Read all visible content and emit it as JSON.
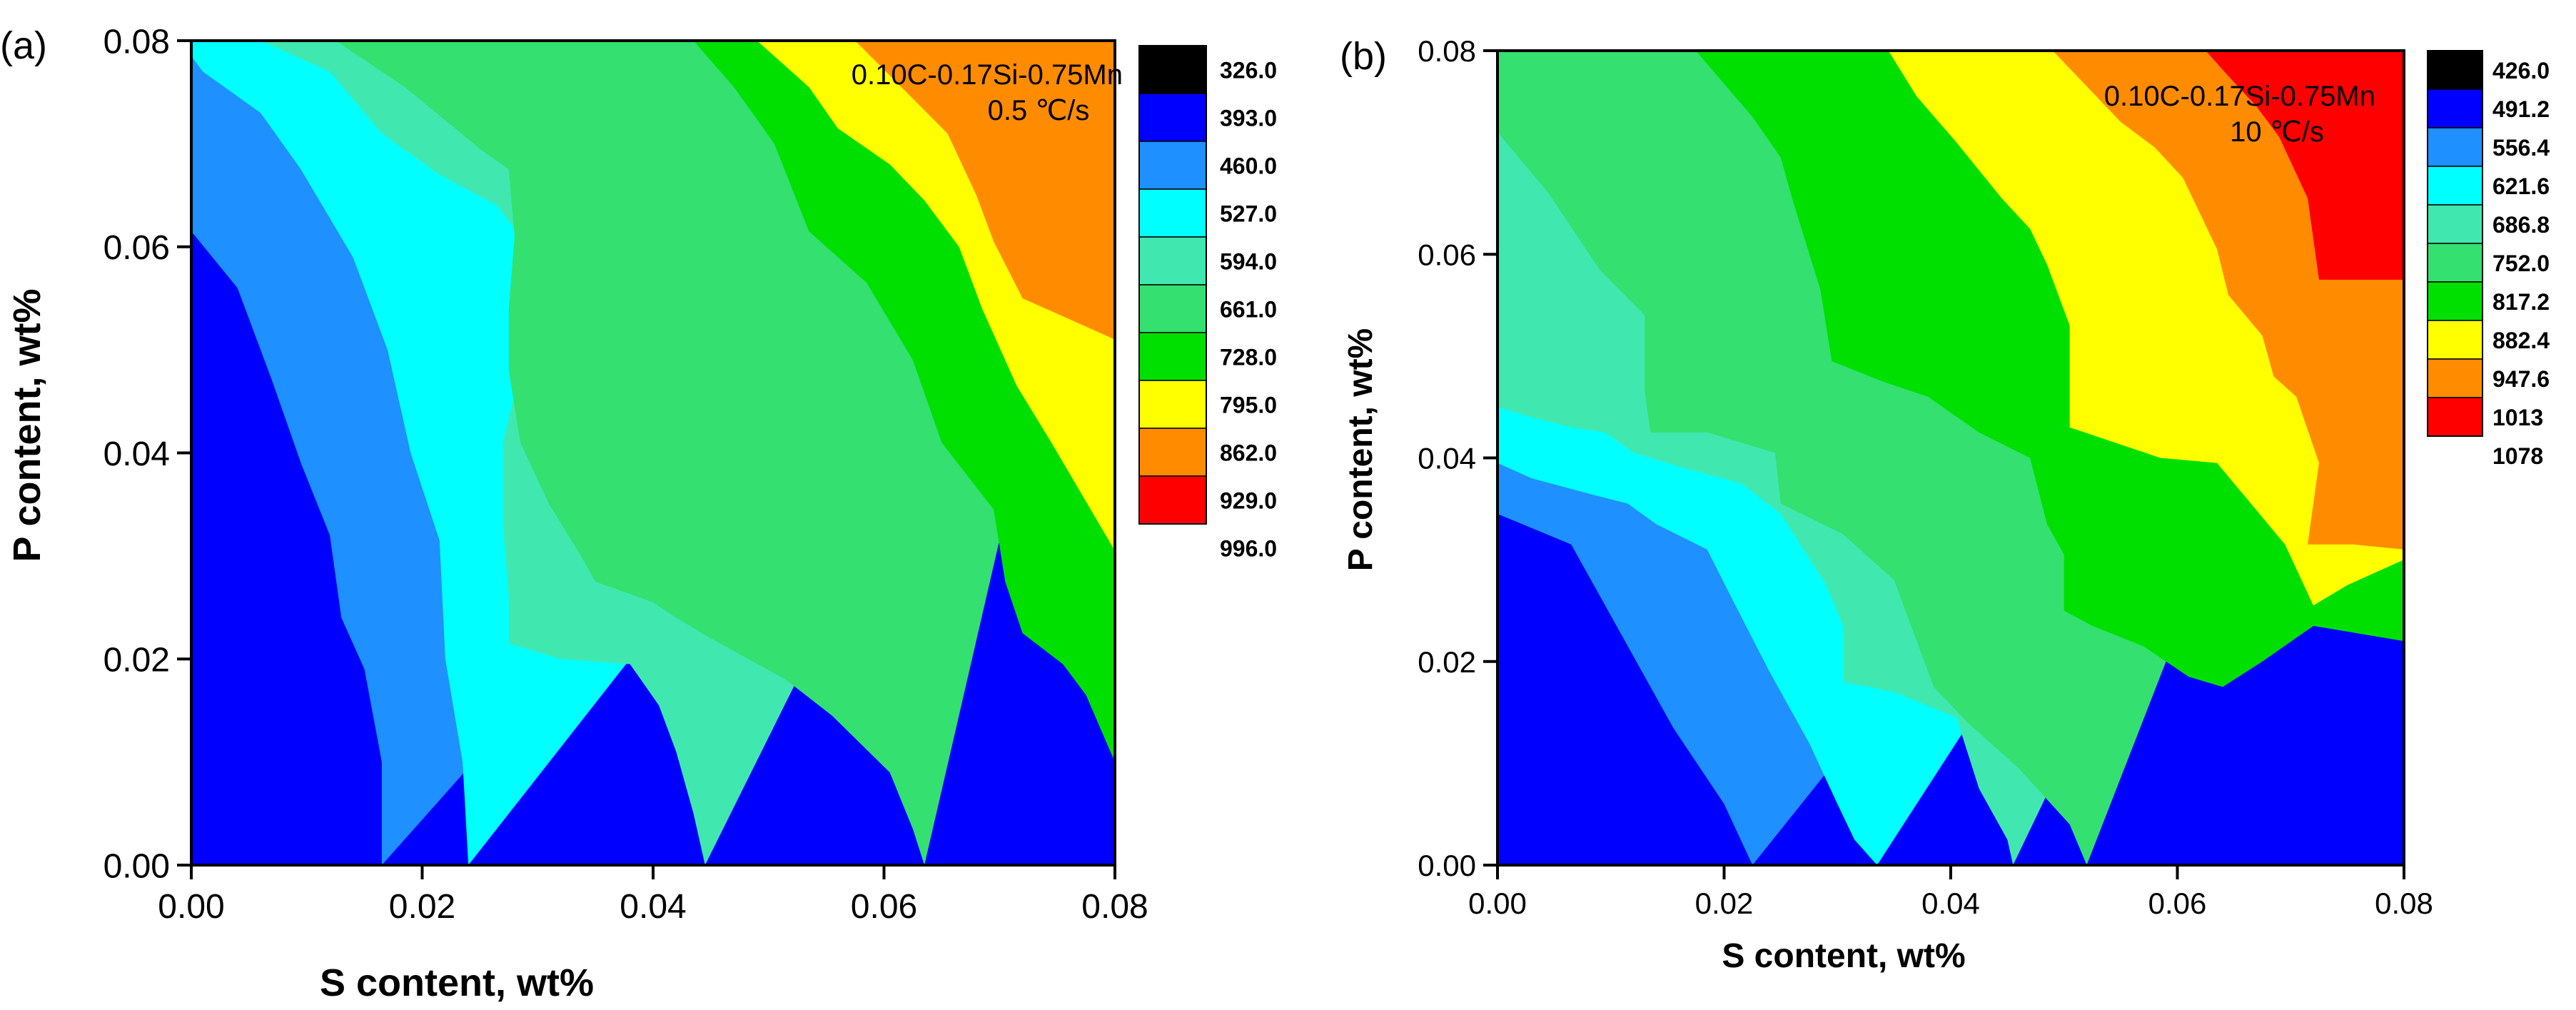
{
  "chart_data": [
    {
      "panel_label": "(a)",
      "type": "heatmap",
      "subtype": "filled-contour",
      "xlabel": "S content, wt%",
      "ylabel": "P content, wt%",
      "xlim": [
        0,
        0.08
      ],
      "ylim": [
        0,
        0.08
      ],
      "x_ticks": [
        "0.00",
        "0.02",
        "0.04",
        "0.06",
        "0.08"
      ],
      "y_ticks": [
        "0.00",
        "0.02",
        "0.04",
        "0.06",
        "0.08"
      ],
      "annotation": {
        "composition": "0.10C-0.17Si-0.75Mn",
        "cooling_rate": "0.5 ℃/s"
      },
      "legend": {
        "labels": [
          "326.0",
          "393.0",
          "460.0",
          "527.0",
          "594.0",
          "661.0",
          "728.0",
          "795.0",
          "862.0",
          "929.0",
          "996.0"
        ],
        "colors": [
          "#000000",
          "#0000ff",
          "#1e90ff",
          "#00ffff",
          "#40e8b0",
          "#33e070",
          "#00e000",
          "#ffff00",
          "#ff8c00",
          "#ff0000"
        ]
      },
      "contour_levels": [
        {
          "color": "#000000",
          "boundary": []
        },
        {
          "color": "#0000ff",
          "boundary": [
            [
              0.0,
              0.039
            ],
            [
              0.002,
              0.033
            ],
            [
              0.003,
              0.021
            ],
            [
              0.005,
              0.013
            ],
            [
              0.0065,
              0.0
            ]
          ]
        },
        {
          "color": "#1e90ff",
          "boundary": [
            [
              0.0,
              0.0615
            ],
            [
              0.004,
              0.056
            ],
            [
              0.007,
              0.047
            ],
            [
              0.0095,
              0.039
            ],
            [
              0.012,
              0.032
            ],
            [
              0.013,
              0.024
            ],
            [
              0.015,
              0.019
            ],
            [
              0.0165,
              0.01
            ],
            [
              0.0165,
              0.0
            ]
          ]
        },
        {
          "color": "#00ffff",
          "boundary": [
            [
              0.0,
              0.0785
            ],
            [
              0.001,
              0.077
            ],
            [
              0.006,
              0.073
            ],
            [
              0.0095,
              0.0675
            ],
            [
              0.014,
              0.059
            ],
            [
              0.017,
              0.05
            ],
            [
              0.019,
              0.04
            ],
            [
              0.0215,
              0.0315
            ],
            [
              0.022,
              0.02
            ],
            [
              0.0235,
              0.01
            ],
            [
              0.024,
              0.0
            ]
          ]
        },
        {
          "color": "#40e8b0",
          "boundary": [
            [
              0.006,
              0.08
            ],
            [
              0.012,
              0.077
            ],
            [
              0.0165,
              0.071
            ],
            [
              0.0215,
              0.067
            ],
            [
              0.0265,
              0.064
            ],
            [
              0.0285,
              0.061
            ],
            [
              0.0285,
              0.048
            ],
            [
              0.027,
              0.041
            ],
            [
              0.027,
              0.033
            ],
            [
              0.0275,
              0.026
            ],
            [
              0.0275,
              0.0215
            ],
            [
              0.032,
              0.02
            ],
            [
              0.038,
              0.0195
            ],
            [
              0.0405,
              0.0155
            ],
            [
              0.042,
              0.011
            ],
            [
              0.0435,
              0.005
            ],
            [
              0.0445,
              0.0
            ]
          ]
        },
        {
          "color": "#33e070",
          "boundary": [
            [
              0.0125,
              0.08
            ],
            [
              0.0185,
              0.0755
            ],
            [
              0.025,
              0.0695
            ],
            [
              0.0275,
              0.0675
            ],
            [
              0.028,
              0.061
            ],
            [
              0.0275,
              0.054
            ],
            [
              0.0275,
              0.048
            ],
            [
              0.0285,
              0.041
            ],
            [
              0.031,
              0.035
            ],
            [
              0.0335,
              0.0305
            ],
            [
              0.035,
              0.0275
            ],
            [
              0.04,
              0.0255
            ],
            [
              0.042,
              0.024
            ],
            [
              0.045,
              0.022
            ],
            [
              0.0515,
              0.018
            ],
            [
              0.0555,
              0.0145
            ],
            [
              0.0605,
              0.009
            ],
            [
              0.0625,
              0.0035
            ],
            [
              0.0635,
              0.0
            ]
          ]
        },
        {
          "color": "#00e000",
          "boundary": [
            [
              0.0435,
              0.08
            ],
            [
              0.047,
              0.0755
            ],
            [
              0.0505,
              0.07
            ],
            [
              0.0535,
              0.0615
            ],
            [
              0.0585,
              0.0565
            ],
            [
              0.0625,
              0.049
            ],
            [
              0.065,
              0.041
            ],
            [
              0.0695,
              0.0345
            ],
            [
              0.0705,
              0.0275
            ],
            [
              0.072,
              0.0225
            ],
            [
              0.0755,
              0.0195
            ],
            [
              0.0775,
              0.0165
            ],
            [
              0.08,
              0.01
            ]
          ]
        },
        {
          "color": "#ffff00",
          "boundary": [
            [
              0.049,
              0.08
            ],
            [
              0.0535,
              0.0755
            ],
            [
              0.056,
              0.0715
            ],
            [
              0.0605,
              0.068
            ],
            [
              0.0635,
              0.0645
            ],
            [
              0.0665,
              0.06
            ],
            [
              0.0685,
              0.054
            ],
            [
              0.0715,
              0.0465
            ],
            [
              0.0745,
              0.041
            ],
            [
              0.08,
              0.0305
            ]
          ]
        },
        {
          "color": "#ff8c00",
          "boundary": [
            [
              0.0575,
              0.08
            ],
            [
              0.0615,
              0.0755
            ],
            [
              0.0655,
              0.071
            ],
            [
              0.068,
              0.065
            ],
            [
              0.0695,
              0.0605
            ],
            [
              0.072,
              0.055
            ],
            [
              0.08,
              0.051
            ]
          ]
        },
        {
          "color": "#ff0000",
          "boundary": []
        }
      ]
    },
    {
      "panel_label": "(b)",
      "type": "heatmap",
      "subtype": "filled-contour",
      "xlabel": "S content, wt%",
      "ylabel": "P content, wt%",
      "xlim": [
        0,
        0.08
      ],
      "ylim": [
        0,
        0.08
      ],
      "x_ticks": [
        "0.00",
        "0.02",
        "0.04",
        "0.06",
        "0.08"
      ],
      "y_ticks": [
        "0.00",
        "0.02",
        "0.04",
        "0.06",
        "0.08"
      ],
      "annotation": {
        "composition": "0.10C-0.17Si-0.75Mn",
        "cooling_rate": "10 ℃/s"
      },
      "legend": {
        "labels": [
          "426.0",
          "491.2",
          "556.4",
          "621.6",
          "686.8",
          "752.0",
          "817.2",
          "882.4",
          "947.6",
          "1013",
          "1078"
        ],
        "colors": [
          "#000000",
          "#0000ff",
          "#1e90ff",
          "#00ffff",
          "#40e8b0",
          "#33e070",
          "#00e000",
          "#ffff00",
          "#ff8c00",
          "#ff0000"
        ]
      },
      "contour_levels": [
        {
          "color": "#000000",
          "boundary": []
        },
        {
          "color": "#0000ff",
          "boundary": [
            [
              0.0,
              0.0195
            ],
            [
              0.004,
              0.0145
            ],
            [
              0.0085,
              0.007
            ],
            [
              0.011,
              0.0
            ]
          ]
        },
        {
          "color": "#1e90ff",
          "boundary": [
            [
              0.0,
              0.0345
            ],
            [
              0.0065,
              0.0315
            ],
            [
              0.0095,
              0.0255
            ],
            [
              0.0125,
              0.0195
            ],
            [
              0.0155,
              0.0135
            ],
            [
              0.02,
              0.006
            ],
            [
              0.0225,
              0.0
            ]
          ]
        },
        {
          "color": "#00ffff",
          "boundary": [
            [
              0.0,
              0.0395
            ],
            [
              0.003,
              0.038
            ],
            [
              0.008,
              0.0365
            ],
            [
              0.0115,
              0.0355
            ],
            [
              0.014,
              0.0335
            ],
            [
              0.0185,
              0.031
            ],
            [
              0.021,
              0.0255
            ],
            [
              0.024,
              0.019
            ],
            [
              0.0275,
              0.012
            ],
            [
              0.03,
              0.006
            ],
            [
              0.0315,
              0.0025
            ],
            [
              0.0335,
              0.0
            ]
          ]
        },
        {
          "color": "#40e8b0",
          "boundary": [
            [
              0.0,
              0.045
            ],
            [
              0.003,
              0.044
            ],
            [
              0.0065,
              0.043
            ],
            [
              0.0095,
              0.0425
            ],
            [
              0.012,
              0.0405
            ],
            [
              0.0165,
              0.039
            ],
            [
              0.0215,
              0.0375
            ],
            [
              0.025,
              0.0345
            ],
            [
              0.029,
              0.0275
            ],
            [
              0.0305,
              0.0235
            ],
            [
              0.0305,
              0.018
            ],
            [
              0.035,
              0.017
            ],
            [
              0.0405,
              0.0145
            ],
            [
              0.0425,
              0.0075
            ],
            [
              0.045,
              0.0025
            ],
            [
              0.0455,
              0.0
            ]
          ]
        },
        {
          "color": "#33e070",
          "boundary": [
            [
              0.0,
              0.072
            ],
            [
              0.0045,
              0.066
            ],
            [
              0.009,
              0.0585
            ],
            [
              0.013,
              0.054
            ],
            [
              0.013,
              0.0465
            ],
            [
              0.0135,
              0.0425
            ],
            [
              0.0185,
              0.0425
            ],
            [
              0.0245,
              0.0405
            ],
            [
              0.025,
              0.0355
            ],
            [
              0.0305,
              0.0325
            ],
            [
              0.035,
              0.028
            ],
            [
              0.0365,
              0.0235
            ],
            [
              0.0385,
              0.0175
            ],
            [
              0.0415,
              0.014
            ],
            [
              0.046,
              0.0095
            ],
            [
              0.0505,
              0.004
            ],
            [
              0.052,
              0.0
            ]
          ]
        },
        {
          "color": "#00e000",
          "boundary": [
            [
              0.0175,
              0.08
            ],
            [
              0.0225,
              0.0735
            ],
            [
              0.025,
              0.0695
            ],
            [
              0.026,
              0.0655
            ],
            [
              0.0285,
              0.0565
            ],
            [
              0.0295,
              0.0495
            ],
            [
              0.034,
              0.0475
            ],
            [
              0.038,
              0.046
            ],
            [
              0.0425,
              0.0425
            ],
            [
              0.047,
              0.04
            ],
            [
              0.0485,
              0.0335
            ],
            [
              0.05,
              0.0305
            ],
            [
              0.05,
              0.025
            ],
            [
              0.0525,
              0.0235
            ],
            [
              0.057,
              0.0215
            ],
            [
              0.061,
              0.0185
            ],
            [
              0.064,
              0.0175
            ],
            [
              0.0675,
              0.02
            ],
            [
              0.072,
              0.0235
            ],
            [
              0.08,
              0.022
            ]
          ]
        },
        {
          "color": "#ffff00",
          "boundary": [
            [
              0.0345,
              0.08
            ],
            [
              0.037,
              0.0755
            ],
            [
              0.0405,
              0.071
            ],
            [
              0.0445,
              0.0655
            ],
            [
              0.047,
              0.0625
            ],
            [
              0.0485,
              0.059
            ],
            [
              0.0505,
              0.053
            ],
            [
              0.0505,
              0.0445
            ],
            [
              0.0505,
              0.043
            ],
            [
              0.0545,
              0.0415
            ],
            [
              0.0585,
              0.04
            ],
            [
              0.0635,
              0.0395
            ],
            [
              0.0665,
              0.0355
            ],
            [
              0.0695,
              0.0315
            ],
            [
              0.072,
              0.0255
            ],
            [
              0.075,
              0.0275
            ],
            [
              0.08,
              0.03
            ]
          ]
        },
        {
          "color": "#ff8c00",
          "boundary": [
            [
              0.049,
              0.08
            ],
            [
              0.052,
              0.0765
            ],
            [
              0.055,
              0.073
            ],
            [
              0.058,
              0.0705
            ],
            [
              0.0605,
              0.0675
            ],
            [
              0.0635,
              0.0605
            ],
            [
              0.0645,
              0.056
            ],
            [
              0.0675,
              0.052
            ],
            [
              0.0685,
              0.048
            ],
            [
              0.0705,
              0.046
            ],
            [
              0.0725,
              0.0395
            ],
            [
              0.0715,
              0.0315
            ],
            [
              0.0755,
              0.0315
            ],
            [
              0.08,
              0.031
            ]
          ]
        },
        {
          "color": "#ff0000",
          "boundary": [
            [
              0.0625,
              0.08
            ],
            [
              0.0645,
              0.0775
            ],
            [
              0.067,
              0.0745
            ],
            [
              0.069,
              0.0715
            ],
            [
              0.0715,
              0.0655
            ],
            [
              0.0725,
              0.0575
            ],
            [
              0.08,
              0.0575
            ]
          ]
        }
      ]
    }
  ]
}
